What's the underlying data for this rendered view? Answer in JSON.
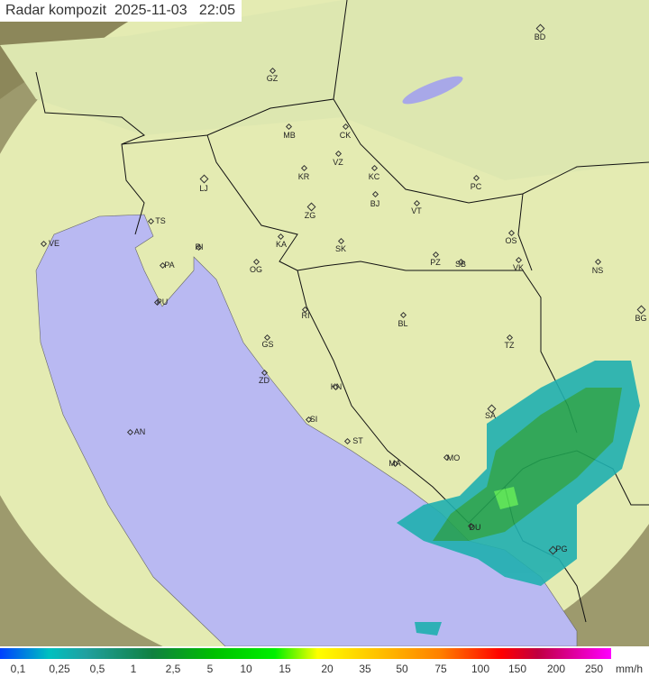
{
  "title": "Radar kompozit  2025-11-03   22:05",
  "cities": [
    "BD",
    "GZ",
    "MB",
    "CK",
    "VZ",
    "KR",
    "KC",
    "LJ",
    "PC",
    "BJ",
    "ZG",
    "VT",
    "TS",
    "VE",
    "KA",
    "SK",
    "OS",
    "RI",
    "PA",
    "OG",
    "PZ",
    "SB",
    "VK",
    "NS",
    "PU",
    "BG",
    "RI",
    "BL",
    "GS",
    "TZ",
    "ZD",
    "KN",
    "SA",
    "SI",
    "AN",
    "ST",
    "MO",
    "MA",
    "DU",
    "PG"
  ],
  "legend": {
    "unit": "mm/h",
    "labels": [
      "0,1",
      "0,25",
      "0,5",
      "1",
      "2,5",
      "5",
      "10",
      "15",
      "20",
      "35",
      "50",
      "75",
      "100",
      "150",
      "200",
      "250"
    ]
  },
  "colors": {
    "sea": "#b9b9f2",
    "land": "#e6ecb4",
    "outside": "#8f8a5a",
    "rain_light": "#20b0b0",
    "rain_mid": "#20a050",
    "rain_heavy": "#40d040"
  }
}
